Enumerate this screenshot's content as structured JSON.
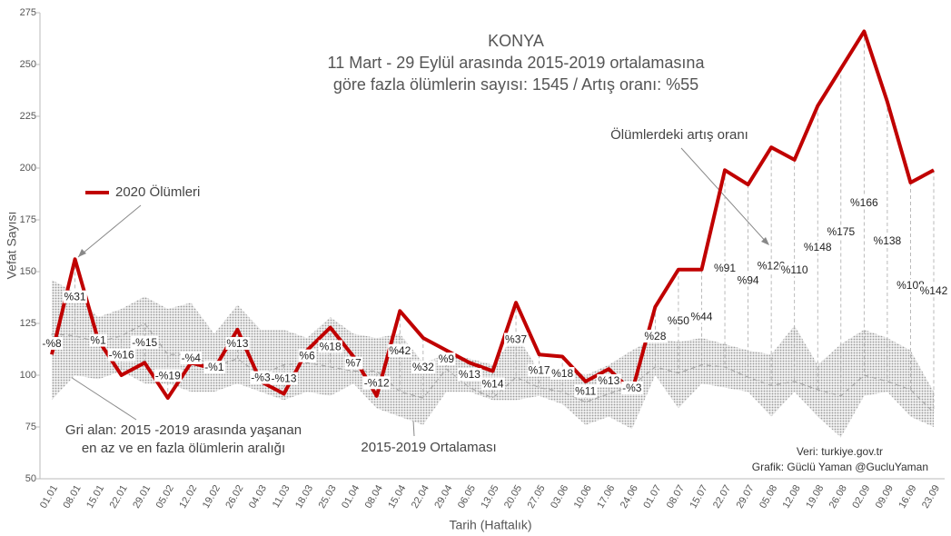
{
  "chart_data": {
    "type": "line",
    "title": "KONYA",
    "subtitle": [
      "11 Mart - 29 Eylül arasında 2015-2019 ortalamasına",
      "göre fazla ölümlerin sayısı: 1545 / Artış oranı: %55"
    ],
    "x_label": "Tarih (Haftalık)",
    "y_label": "Vefat Sayısı",
    "categories": [
      "01.01",
      "08.01",
      "15.01",
      "22.01",
      "29.01",
      "05.02",
      "12.02",
      "19.02",
      "26.02",
      "04.03",
      "11.03",
      "18.03",
      "25.03",
      "01.04",
      "08.04",
      "15.04",
      "22.04",
      "29.04",
      "06.05",
      "13.05",
      "20.05",
      "27.05",
      "03.06",
      "10.06",
      "17.06",
      "24.06",
      "01.07",
      "08.07",
      "15.07",
      "22.07",
      "29.07",
      "05.08",
      "12.08",
      "19.08",
      "26.08",
      "02.09",
      "09.09",
      "16.09",
      "23.09"
    ],
    "series": [
      {
        "name": "2020 Ölümleri",
        "color": "#c00000",
        "values": [
          110,
          156,
          117,
          100,
          106,
          89,
          106,
          103,
          122,
          97,
          91,
          112,
          123,
          109,
          90,
          131,
          118,
          112,
          106,
          102,
          135,
          110,
          109,
          97,
          103,
          92,
          133,
          151,
          151,
          199,
          192,
          210,
          204,
          230,
          248,
          266,
          232,
          193,
          199
        ]
      },
      {
        "name": "2015-2019 Ortalaması",
        "color": "#aaaaaa",
        "values": [
          120,
          119,
          116,
          119,
          125,
          110,
          110,
          104,
          108,
          100,
          105,
          106,
          104,
          102,
          102,
          92,
          89,
          103,
          94,
          89,
          99,
          94,
          92,
          87,
          91,
          95,
          104,
          101,
          105,
          104,
          99,
          95,
          97,
          93,
          90,
          100,
          97,
          93,
          82
        ]
      }
    ],
    "range": {
      "color": "#bbbbbb",
      "max": [
        146,
        140,
        128,
        132,
        138,
        132,
        135,
        120,
        134,
        122,
        122,
        118,
        128,
        120,
        118,
        120,
        106,
        110,
        108,
        105,
        120,
        102,
        104,
        100,
        105,
        112,
        118,
        116,
        118,
        115,
        112,
        110,
        124,
        105,
        115,
        122,
        118,
        112,
        92
      ],
      "min": [
        88,
        100,
        98,
        102,
        96,
        96,
        92,
        92,
        96,
        92,
        88,
        92,
        90,
        96,
        84,
        80,
        76,
        92,
        92,
        88,
        88,
        90,
        86,
        76,
        80,
        74,
        100,
        84,
        96,
        94,
        92,
        80,
        92,
        80,
        70,
        90,
        92,
        80,
        75
      ]
    },
    "change_pct": {
      "values": [
        -8,
        31,
        1,
        -16,
        -15,
        -19,
        -4,
        -1,
        13,
        -3,
        -13,
        6,
        18,
        7,
        -12,
        42,
        32,
        9,
        13,
        14,
        37,
        17,
        18,
        11,
        13,
        -3,
        28,
        50,
        44,
        91,
        94,
        120,
        110,
        148,
        175,
        166,
        138,
        108,
        142
      ],
      "value_labels": [
        "-%8",
        "%31",
        "%1",
        "-%16",
        "-%15",
        "-%19",
        "-%4",
        "-%1",
        "%13",
        "-%3",
        "-%13",
        "%6",
        "%18",
        "%7",
        "-%12",
        "%42",
        "%32",
        "%9",
        "%13",
        "%14",
        "%37",
        "%17",
        "%18",
        "%11",
        "%13",
        "-%3",
        "%28",
        "%50",
        "%44",
        "%91",
        "%94",
        "%120",
        "%110",
        "%148",
        "%175",
        "%166",
        "%138",
        "%108",
        "%142"
      ]
    },
    "annotations": [
      "Ölümlerdeki artış oranı",
      "Gri alan: 2015 -2019 arasında yaşanan",
      "en az ve en fazla ölümlerin aralığı",
      "Veri: turkiye.gov.tr",
      "Grafik: Güclü Yaman  @GucluYaman"
    ],
    "ylim": [
      50,
      275
    ],
    "yticks": [
      50,
      75,
      100,
      125,
      150,
      175,
      200,
      225,
      250,
      275
    ],
    "grid": false
  }
}
